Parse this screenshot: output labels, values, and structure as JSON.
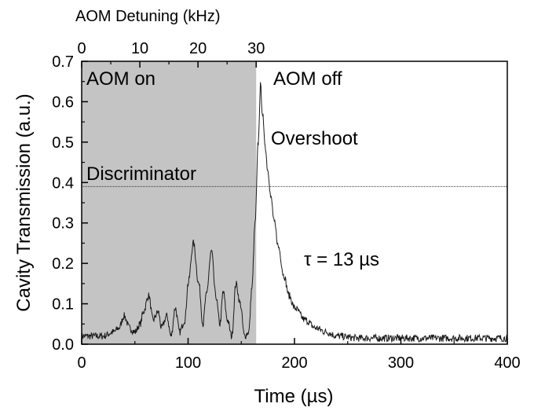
{
  "chart_data": {
    "type": "line",
    "xlabel": "Time  (µs)",
    "ylabel": "Cavity Transmission  (a.u.)",
    "xlim": [
      0,
      400
    ],
    "ylim": [
      0,
      0.7
    ],
    "x_ticks": [
      0,
      100,
      200,
      300,
      400
    ],
    "y_ticks": [
      0.0,
      0.1,
      0.2,
      0.3,
      0.4,
      0.5,
      0.6,
      0.7
    ],
    "x_tick_labels": [
      "0",
      "100",
      "200",
      "300",
      "400"
    ],
    "y_tick_labels": [
      "0.0",
      "0.1",
      "0.2",
      "0.3",
      "0.4",
      "0.5",
      "0.6",
      "0.7"
    ],
    "top_axis": {
      "label": "AOM Detuning  (kHz)",
      "ticks": [
        0,
        10,
        20,
        30
      ],
      "tick_labels": [
        "0",
        "10",
        "20",
        "30"
      ],
      "time_at_zero": 0,
      "time_at_thirty": 164
    },
    "shaded_region": {
      "x_start": 0,
      "x_end": 164,
      "color": "#c4c4c4"
    },
    "discriminator_level": 0.39,
    "annotations": {
      "aom_on": "AOM on",
      "aom_off": "AOM off",
      "overshoot": "Overshoot",
      "discriminator": "Discriminator",
      "tau": "τ = 13 µs"
    },
    "series": [
      {
        "x": [
          0,
          10,
          20,
          30,
          35,
          40,
          45,
          50,
          55,
          58,
          63,
          67,
          72,
          75,
          80,
          84,
          88,
          92,
          97,
          100,
          105,
          110,
          114,
          117,
          122,
          126,
          130,
          133,
          137,
          141,
          145,
          149,
          153,
          157,
          160,
          163,
          166,
          168,
          170,
          172,
          175,
          178,
          181,
          185,
          190,
          195,
          200,
          210,
          220,
          230,
          240,
          260,
          280,
          300,
          320,
          340,
          360,
          380,
          400
        ],
        "y": [
          0.02,
          0.02,
          0.02,
          0.03,
          0.04,
          0.07,
          0.04,
          0.03,
          0.05,
          0.08,
          0.12,
          0.06,
          0.08,
          0.04,
          0.07,
          0.02,
          0.09,
          0.03,
          0.06,
          0.15,
          0.25,
          0.15,
          0.05,
          0.12,
          0.23,
          0.12,
          0.05,
          0.13,
          0.06,
          0.02,
          0.15,
          0.1,
          0.02,
          0.03,
          0.14,
          0.3,
          0.5,
          0.64,
          0.57,
          0.5,
          0.43,
          0.36,
          0.3,
          0.24,
          0.17,
          0.12,
          0.09,
          0.06,
          0.04,
          0.03,
          0.02,
          0.015,
          0.015,
          0.015,
          0.015,
          0.015,
          0.015,
          0.015,
          0.015
        ]
      }
    ],
    "colors": {
      "trace": "#1a1a1a",
      "shade": "#c4c4c4"
    }
  }
}
